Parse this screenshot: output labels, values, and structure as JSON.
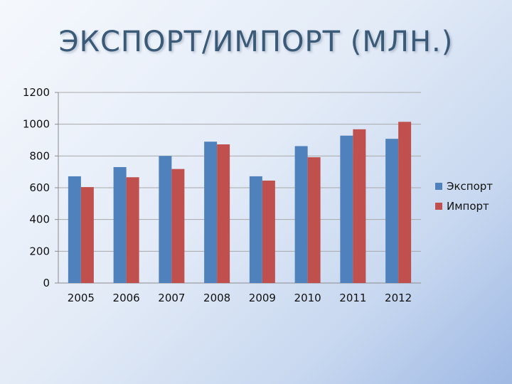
{
  "slide": {
    "title": "ЭКСПОРТ/ИМПОРТ (МЛН.)"
  },
  "chart_data": {
    "type": "bar",
    "title": "",
    "xlabel": "",
    "ylabel": "",
    "categories": [
      "2005",
      "2006",
      "2007",
      "2008",
      "2009",
      "2010",
      "2011",
      "2012"
    ],
    "series": [
      {
        "name": "Экспорт",
        "color": "#4f81bd",
        "values": [
          672,
          730,
          800,
          890,
          672,
          862,
          928,
          908
        ]
      },
      {
        "name": "Импорт",
        "color": "#c0504d",
        "values": [
          604,
          666,
          718,
          873,
          645,
          792,
          968,
          1015
        ]
      }
    ],
    "ylim": [
      0,
      1200
    ],
    "yticks": [
      0,
      200,
      400,
      600,
      800,
      1000,
      1200
    ],
    "grid": true,
    "legend_position": "right"
  }
}
